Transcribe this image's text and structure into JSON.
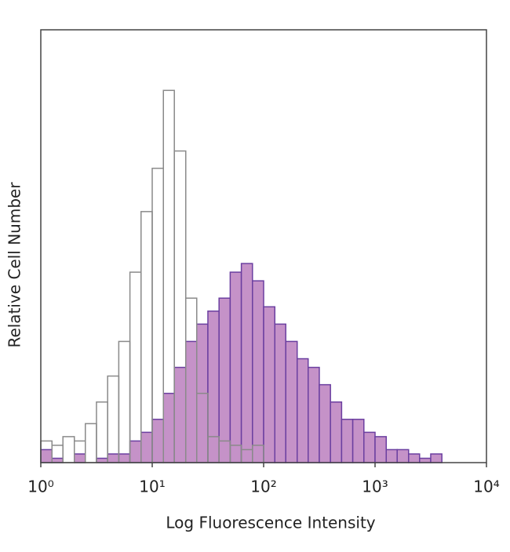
{
  "chart_data": {
    "type": "histogram",
    "xlabel": "Log Fluorescence Intensity",
    "ylabel": "Relative Cell Number",
    "xscale": "log",
    "xlim": [
      1,
      10000
    ],
    "xticks": [
      {
        "value": 1,
        "label": "10⁰"
      },
      {
        "value": 10,
        "label": "10¹"
      },
      {
        "value": 100,
        "label": "10²"
      },
      {
        "value": 1000,
        "label": "10³"
      },
      {
        "value": 10000,
        "label": "10⁴"
      }
    ],
    "ylim": [
      0,
      100
    ],
    "bins": [
      1,
      1.26,
      1.58,
      2.0,
      2.51,
      3.16,
      3.98,
      5.01,
      6.31,
      7.94,
      10,
      12.6,
      15.8,
      20.0,
      25.1,
      31.6,
      39.8,
      50.1,
      63.1,
      79.4,
      100,
      126,
      158,
      200,
      251,
      316,
      398,
      501,
      631,
      794,
      1000,
      1260,
      1580,
      2000,
      2510,
      3160,
      3980,
      5010,
      6310,
      7940,
      10000
    ],
    "series": [
      {
        "color": "#6b3fa0",
        "fill": "#c592c8",
        "values": [
          3,
          1,
          0,
          2,
          0,
          1,
          2,
          2,
          5,
          7,
          10,
          16,
          22,
          28,
          32,
          35,
          38,
          44,
          46,
          42,
          36,
          32,
          28,
          24,
          22,
          18,
          14,
          10,
          10,
          7,
          6,
          3,
          3,
          2,
          1,
          2,
          0,
          0,
          0,
          0
        ]
      },
      {
        "color": "#8a8a8a",
        "fill": "none",
        "values": [
          5,
          4,
          6,
          5,
          9,
          14,
          20,
          28,
          44,
          58,
          68,
          86,
          72,
          38,
          16,
          6,
          5,
          4,
          3,
          4,
          0,
          0,
          0,
          0,
          0,
          0,
          0,
          0,
          0,
          0,
          0,
          0,
          0,
          0,
          0,
          0,
          0,
          0,
          0,
          0
        ]
      }
    ]
  }
}
